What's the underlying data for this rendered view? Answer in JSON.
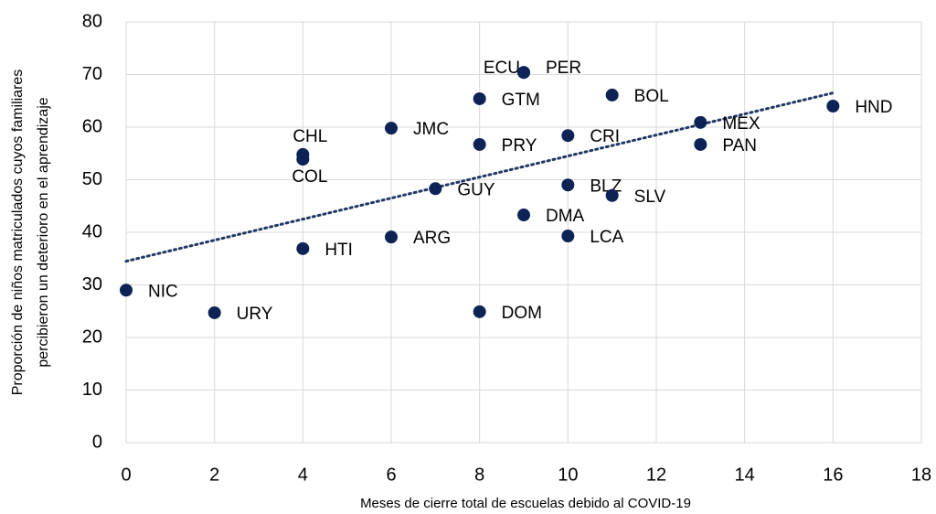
{
  "chart_data": {
    "type": "scatter",
    "x_label": "Meses de cierre total de escuelas debido al COVID-19",
    "y_label": [
      "Proporción de niños matriculados cuyos familiares",
      "percibieron un deterioro en el aprendizaje"
    ],
    "color": "#0d2356",
    "grid": true,
    "xlim": [
      0,
      18
    ],
    "xticks": [
      0,
      2,
      4,
      6,
      8,
      10,
      12,
      14,
      16,
      18
    ],
    "ylim": [
      0,
      80
    ],
    "yticks": [
      0,
      10,
      20,
      30,
      40,
      50,
      60,
      70,
      80
    ],
    "points": {
      "labels": [
        "NIC",
        "URY",
        "HTI",
        "CHL",
        "COL",
        "JMC",
        "ARG",
        "GUY",
        "GTM",
        "PRY",
        "DOM",
        "ECU",
        "PER",
        "DMA",
        "CRI",
        "BLZ",
        "LCA",
        "SLV",
        "BOL",
        "MEX",
        "PAN",
        "HND"
      ],
      "x": [
        0,
        2,
        4,
        4,
        4,
        6,
        6,
        7,
        8,
        8,
        8,
        9,
        9,
        9,
        10,
        10,
        10,
        11,
        11,
        13,
        13,
        16
      ],
      "y": [
        29.0,
        24.7,
        36.9,
        54.8,
        53.9,
        59.8,
        39.1,
        48.3,
        65.4,
        56.7,
        24.9,
        70.4,
        70.4,
        43.3,
        58.4,
        49.0,
        39.3,
        47.0,
        66.1,
        60.9,
        56.7,
        64.0
      ]
    },
    "trendline": {
      "x": [
        0,
        16
      ],
      "y": [
        34.5,
        66.5
      ],
      "color": "#1f3864"
    }
  }
}
